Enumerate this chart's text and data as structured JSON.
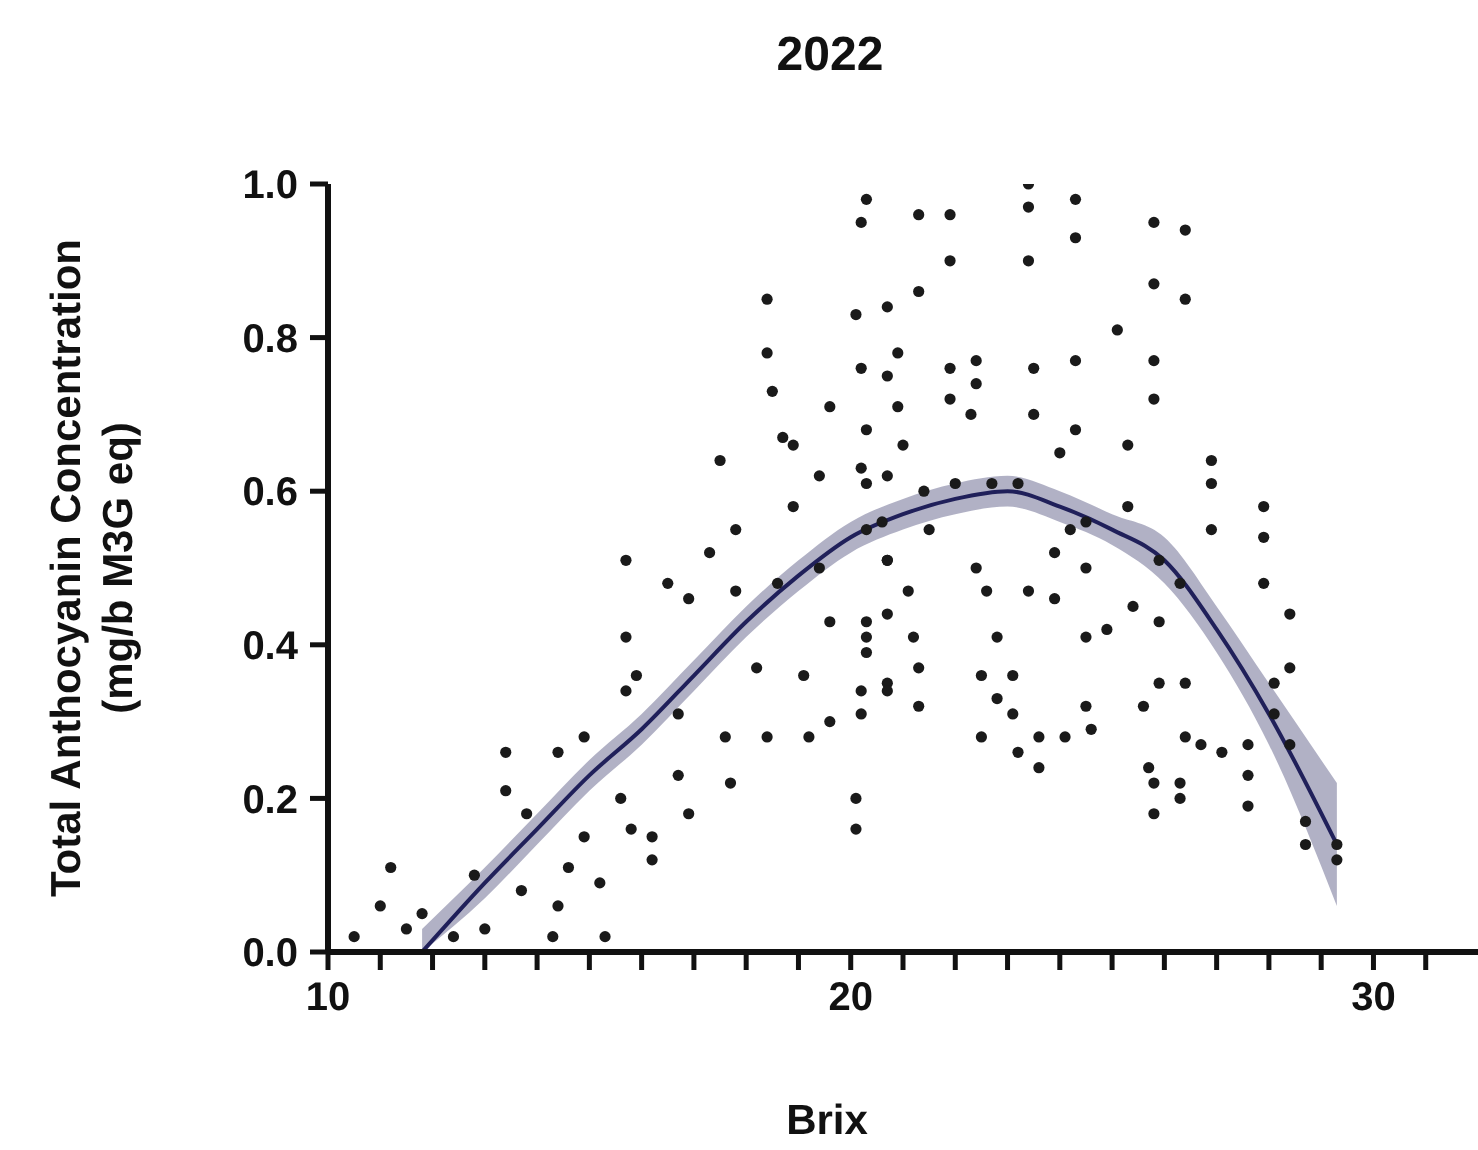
{
  "chart_data": {
    "type": "scatter",
    "title": "2022",
    "xlabel": "Brix",
    "ylabel": "Total Anthocyanin Concentration\n(mg/b M3G eq)",
    "xlim": [
      10,
      32
    ],
    "ylim": [
      0,
      1
    ],
    "xticks": [
      10,
      {
        "value": 11,
        "label": null
      },
      {
        "value": 12,
        "label": null
      },
      {
        "value": 13,
        "label": null
      },
      {
        "value": 14,
        "label": null
      },
      {
        "value": 15,
        "label": null
      },
      {
        "value": 16,
        "label": null
      },
      {
        "value": 17,
        "label": null
      },
      {
        "value": 18,
        "label": null
      },
      {
        "value": 19,
        "label": null
      },
      20,
      {
        "value": 21,
        "label": null
      },
      {
        "value": 22,
        "label": null
      },
      {
        "value": 23,
        "label": null
      },
      {
        "value": 24,
        "label": null
      },
      {
        "value": 25,
        "label": null
      },
      {
        "value": 26,
        "label": null
      },
      {
        "value": 27,
        "label": null
      },
      {
        "value": 28,
        "label": null
      },
      {
        "value": 29,
        "label": null
      },
      30,
      {
        "value": 31,
        "label": null
      }
    ],
    "yticks": [
      {
        "value": 0,
        "label": "0.0"
      },
      {
        "value": 0.2,
        "label": "0.2"
      },
      {
        "value": 0.4,
        "label": "0.4"
      },
      {
        "value": 0.6,
        "label": "0.6"
      },
      {
        "value": 0.8,
        "label": "0.8"
      },
      {
        "value": 1,
        "label": "1.0"
      }
    ],
    "grid": false,
    "legend": false,
    "marker": "circle",
    "series": [
      {
        "color": "#1a1a1a",
        "x": [
          10.5,
          11.2,
          11.0,
          11.5,
          11.8,
          12.4,
          12.8,
          13.0,
          13.4,
          13.4,
          13.8,
          13.7,
          14.3,
          14.4,
          14.4,
          14.6,
          14.9,
          14.9,
          15.2,
          15.3,
          15.7,
          15.7,
          15.7,
          15.6,
          15.8,
          15.9,
          16.2,
          16.2,
          16.5,
          16.7,
          16.7,
          16.9,
          16.9,
          17.3,
          17.5,
          17.6,
          17.7,
          17.8,
          17.8,
          18.2,
          18.4,
          18.4,
          18.5,
          18.4,
          18.6,
          18.7,
          18.9,
          18.9,
          19.1,
          19.2,
          19.4,
          19.4,
          19.6,
          19.6,
          19.6,
          20.1,
          20.1,
          20.2,
          20.3,
          20.1,
          20.2,
          20.2,
          20.2,
          20.3,
          20.7,
          20.7,
          20.7,
          20.7,
          20.6,
          21.3,
          21.9,
          21.9,
          21.3,
          20.9,
          23.4,
          23.4,
          23.4,
          24.3,
          24.3,
          25.8,
          26.4,
          25.8,
          26.4,
          25.1,
          25.8,
          25.8,
          26.9,
          26.9,
          26.9,
          27.9,
          27.9,
          27.9,
          28.4,
          28.4,
          28.1,
          28.4,
          28.1,
          28.7,
          28.7,
          29.3,
          29.3,
          27.6,
          27.6,
          27.6,
          26.7,
          27.1,
          26.4,
          26.3,
          26.3,
          25.8,
          25.8,
          25.7,
          25.9,
          26.4,
          25.6,
          25.9,
          25.4,
          25.3,
          24.9,
          24.5,
          24.6,
          24.5,
          24.1,
          23.6,
          23.6,
          23.2,
          23.1,
          23.1,
          22.8,
          22.5,
          22.5,
          22.8,
          22.6,
          22.4,
          23.4,
          23.9,
          23.9,
          24.2,
          24.5,
          24.5,
          25.3,
          25.9,
          26.3,
          24.3,
          24.3,
          24.0,
          23.5,
          23.5,
          22.4,
          22.4,
          22.3,
          21.9,
          21.9,
          21.0,
          20.9,
          20.3,
          20.3,
          20.7,
          21.4,
          22.0,
          22.7,
          23.2,
          20.3,
          20.7,
          20.3,
          20.3,
          20.7,
          20.7,
          21.1,
          21.2,
          21.3,
          21.3,
          20.2,
          21.5
        ],
        "values": [
          0.02,
          0.11,
          0.06,
          0.03,
          0.05,
          0.02,
          0.1,
          0.03,
          0.26,
          0.21,
          0.18,
          0.08,
          0.02,
          0.06,
          0.26,
          0.11,
          0.28,
          0.15,
          0.09,
          0.02,
          0.51,
          0.41,
          0.34,
          0.2,
          0.16,
          0.36,
          0.15,
          0.12,
          0.48,
          0.31,
          0.23,
          0.18,
          0.46,
          0.52,
          0.64,
          0.28,
          0.22,
          0.55,
          0.47,
          0.37,
          0.85,
          0.78,
          0.73,
          0.28,
          0.48,
          0.67,
          0.66,
          0.58,
          0.36,
          0.28,
          0.62,
          0.5,
          0.71,
          0.43,
          0.3,
          0.16,
          0.2,
          0.95,
          0.98,
          0.83,
          0.76,
          0.63,
          0.34,
          0.41,
          0.84,
          0.75,
          0.51,
          0.35,
          0.56,
          0.96,
          0.96,
          0.9,
          0.86,
          0.78,
          1.0,
          0.97,
          0.9,
          0.98,
          0.93,
          0.95,
          0.94,
          0.87,
          0.85,
          0.81,
          0.77,
          0.72,
          0.64,
          0.61,
          0.55,
          0.58,
          0.54,
          0.48,
          0.44,
          0.37,
          0.35,
          0.27,
          0.31,
          0.17,
          0.14,
          0.14,
          0.12,
          0.27,
          0.19,
          0.23,
          0.27,
          0.26,
          0.28,
          0.22,
          0.2,
          0.18,
          0.22,
          0.24,
          0.35,
          0.35,
          0.32,
          0.43,
          0.45,
          0.66,
          0.42,
          0.41,
          0.29,
          0.32,
          0.28,
          0.28,
          0.24,
          0.26,
          0.31,
          0.36,
          0.33,
          0.28,
          0.36,
          0.41,
          0.47,
          0.5,
          0.47,
          0.46,
          0.52,
          0.55,
          0.5,
          0.56,
          0.58,
          0.51,
          0.48,
          0.77,
          0.68,
          0.65,
          0.76,
          0.7,
          0.77,
          0.74,
          0.7,
          0.76,
          0.72,
          0.66,
          0.71,
          0.68,
          0.61,
          0.62,
          0.6,
          0.61,
          0.61,
          0.61,
          0.55,
          0.51,
          0.43,
          0.39,
          0.44,
          0.34,
          0.47,
          0.41,
          0.37,
          0.32,
          0.31,
          0.55
        ]
      },
      {
        "type": "line",
        "color": "#20205a",
        "marker": "none",
        "line_style": "solid",
        "x": [
          11.8,
          13,
          14,
          15,
          16,
          17,
          18,
          19,
          20,
          21,
          22,
          23,
          24,
          25,
          26,
          27,
          28,
          29.3
        ],
        "values": [
          0.0,
          0.09,
          0.16,
          0.23,
          0.29,
          0.36,
          0.43,
          0.49,
          0.54,
          0.57,
          0.59,
          0.6,
          0.58,
          0.55,
          0.51,
          0.42,
          0.31,
          0.14
        ],
        "lower": [
          0,
          0.07,
          0.14,
          0.21,
          0.27,
          0.34,
          0.41,
          0.47,
          0.52,
          0.55,
          0.57,
          0.58,
          0.56,
          0.53,
          0.48,
          0.39,
          0.27,
          0.06
        ],
        "upper": [
          0.03,
          0.11,
          0.18,
          0.25,
          0.31,
          0.38,
          0.45,
          0.51,
          0.56,
          0.59,
          0.61,
          0.62,
          0.6,
          0.57,
          0.54,
          0.45,
          0.35,
          0.22
        ]
      }
    ]
  }
}
